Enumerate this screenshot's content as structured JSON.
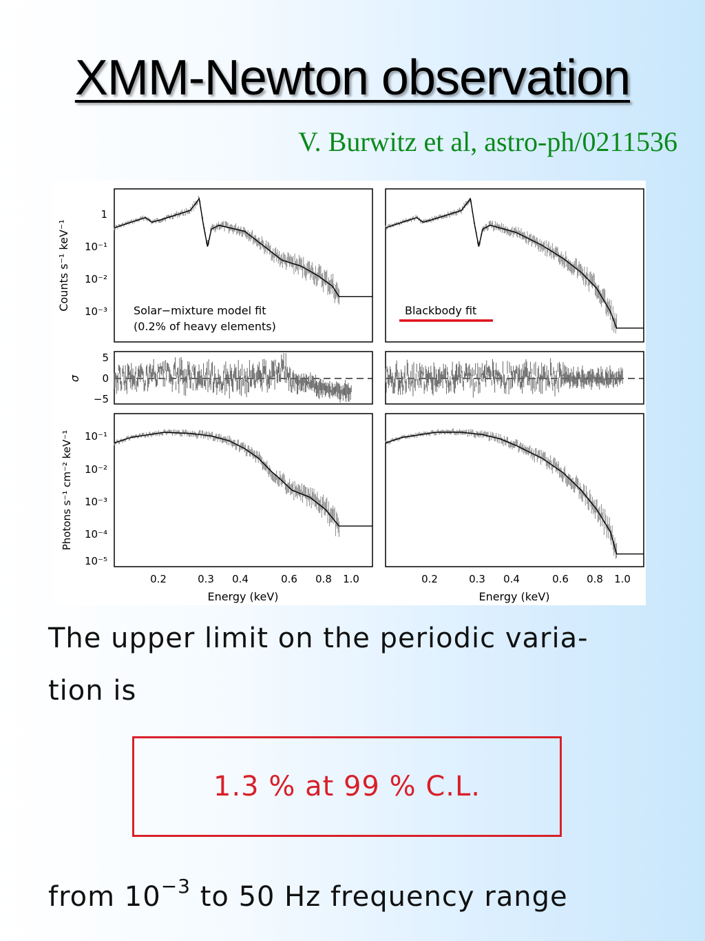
{
  "slide": {
    "title": "XMM-Newton observation",
    "citation": "V. Burwitz et al, astro-ph/0211536",
    "paragraph_line1": "The upper limit on the periodic varia-",
    "paragraph_line2": "tion is",
    "result": "1.3 % at 99 % C.L.",
    "range_before": "from 10",
    "range_exponent": "−3",
    "range_after": " to 50 Hz frequency range",
    "colors": {
      "title": "#000000",
      "citation": "#0a8a1a",
      "result": "#d8202a",
      "blackbody_line": "#e0101a"
    }
  },
  "chart_data": [
    {
      "type": "line",
      "panel": "counts-solar-mixture",
      "ylabel": "Counts s⁻¹ keV⁻¹",
      "annotation_line1": "Solar−mixture model fit",
      "annotation_line2": "(0.2% of heavy elements)",
      "xscale": "log",
      "yscale": "log",
      "xlim": [
        0.13,
        1.2
      ],
      "ylim": [
        0.0002,
        5
      ],
      "yticks": [
        "1",
        "10⁻¹",
        "10⁻²",
        "10⁻³"
      ],
      "series": [
        {
          "x": [
            0.13,
            0.15,
            0.17,
            0.18,
            0.19,
            0.25,
            0.27,
            0.28,
            0.29,
            0.3,
            0.32,
            0.4,
            0.5,
            0.55,
            0.65,
            0.75,
            0.85,
            0.9,
            1.2
          ],
          "y": [
            0.38,
            0.55,
            0.75,
            0.55,
            0.62,
            1.2,
            2.6,
            0.45,
            0.11,
            0.35,
            0.45,
            0.3,
            0.08,
            0.045,
            0.03,
            0.016,
            0.008,
            0.004,
            0.004
          ]
        }
      ]
    },
    {
      "type": "line",
      "panel": "counts-blackbody",
      "annotation_line1": "Blackbody fit",
      "xscale": "log",
      "yscale": "log",
      "xlim": [
        0.13,
        1.2
      ],
      "ylim": [
        0.0002,
        5
      ],
      "series": [
        {
          "x": [
            0.13,
            0.15,
            0.17,
            0.18,
            0.19,
            0.25,
            0.27,
            0.28,
            0.29,
            0.3,
            0.32,
            0.4,
            0.5,
            0.6,
            0.7,
            0.8,
            0.9,
            0.95,
            1.2
          ],
          "y": [
            0.38,
            0.55,
            0.75,
            0.55,
            0.62,
            1.2,
            2.6,
            0.45,
            0.11,
            0.35,
            0.45,
            0.28,
            0.12,
            0.05,
            0.02,
            0.007,
            0.0015,
            0.0005,
            0.0005
          ]
        }
      ]
    },
    {
      "type": "scatter",
      "panel": "residuals-solar-mixture",
      "ylabel": "σ",
      "ylim": [
        -6,
        6
      ],
      "yticks": [
        "5",
        "0",
        "−5"
      ],
      "series": [
        {
          "x": [
            0.13,
            0.2,
            0.3,
            0.4,
            0.5,
            0.55,
            0.6,
            0.7,
            0.8,
            0.9,
            1.0
          ],
          "y": [
            0,
            0.5,
            0,
            -0.5,
            1.2,
            2.5,
            -0.5,
            -1.5,
            -2.5,
            -3,
            -3.5
          ]
        }
      ]
    },
    {
      "type": "scatter",
      "panel": "residuals-blackbody",
      "ylim": [
        -6,
        6
      ],
      "series": [
        {
          "x": [
            0.13,
            0.2,
            0.3,
            0.4,
            0.5,
            0.6,
            0.7,
            0.8,
            0.9,
            1.0
          ],
          "y": [
            0,
            0,
            0,
            0,
            0,
            0,
            0,
            0,
            0,
            0
          ]
        }
      ]
    },
    {
      "type": "line",
      "panel": "photons-solar-mixture",
      "xlabel": "Energy (keV)",
      "ylabel": "Photons s⁻¹ cm⁻² keV⁻¹",
      "xscale": "log",
      "yscale": "log",
      "xlim": [
        0.13,
        1.2
      ],
      "ylim": [
        8e-06,
        0.5
      ],
      "xticks": [
        "0.2",
        "0.3",
        "0.4",
        "0.6",
        "0.8",
        "1.0"
      ],
      "yticks": [
        "10⁻¹",
        "10⁻²",
        "10⁻³",
        "10⁻⁴",
        "10⁻⁵"
      ],
      "series": [
        {
          "x": [
            0.13,
            0.15,
            0.2,
            0.25,
            0.3,
            0.35,
            0.4,
            0.45,
            0.5,
            0.55,
            0.6,
            0.7,
            0.8,
            0.9,
            1.2
          ],
          "y": [
            0.06,
            0.09,
            0.13,
            0.12,
            0.1,
            0.07,
            0.04,
            0.02,
            0.008,
            0.004,
            0.002,
            0.0012,
            0.0005,
            0.00015,
            0.00015
          ]
        }
      ]
    },
    {
      "type": "line",
      "panel": "photons-blackbody",
      "xlabel": "Energy (keV)",
      "xscale": "log",
      "yscale": "log",
      "xlim": [
        0.13,
        1.2
      ],
      "ylim": [
        8e-06,
        0.5
      ],
      "xticks": [
        "0.2",
        "0.3",
        "0.4",
        "0.6",
        "0.8",
        "1.0"
      ],
      "series": [
        {
          "x": [
            0.13,
            0.15,
            0.2,
            0.25,
            0.3,
            0.35,
            0.4,
            0.5,
            0.6,
            0.7,
            0.8,
            0.9,
            0.95,
            1.2
          ],
          "y": [
            0.06,
            0.09,
            0.13,
            0.13,
            0.11,
            0.08,
            0.05,
            0.02,
            0.007,
            0.002,
            0.0005,
            0.0001,
            2e-05,
            2e-05
          ]
        }
      ]
    }
  ]
}
